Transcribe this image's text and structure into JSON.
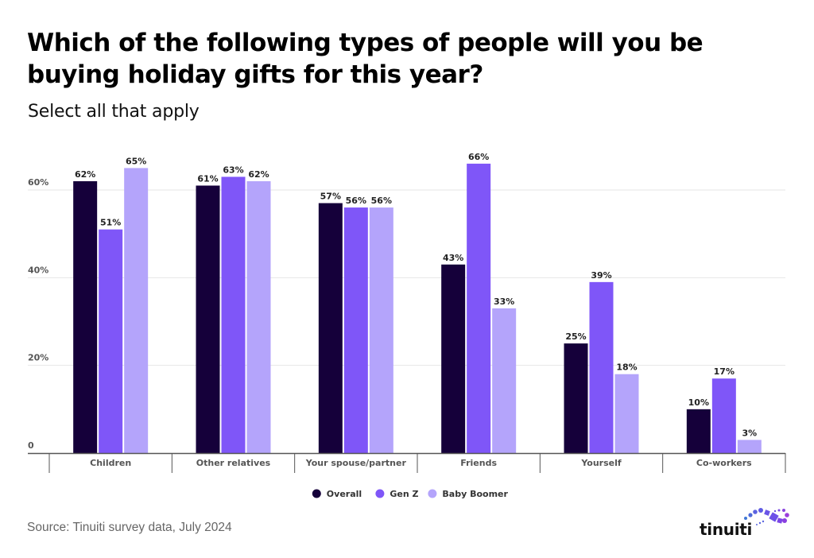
{
  "title": "Which of the following types of people will you be buying holiday gifts for this year?",
  "subtitle": "Select all that apply",
  "source": "Source: Tinuiti survey data, July 2024",
  "brand": {
    "name": "tinuiti",
    "logo_icon": "infinity-dots-icon"
  },
  "colors": {
    "Overall": "#15003a",
    "Gen Z": "#7f56f8",
    "Baby Boomer": "#b4a4fb",
    "gridline": "#e6e6e6",
    "axis": "#555555",
    "tick_text": "#555555",
    "label_text": "#222222"
  },
  "chart_data": {
    "type": "bar",
    "title": "Which of the following types of people will you be buying holiday gifts for this year?",
    "subtitle": "Select all that apply",
    "xlabel": "",
    "ylabel": "",
    "categories": [
      "Children",
      "Other relatives",
      "Your spouse/partner",
      "Friends",
      "Yourself",
      "Co-workers"
    ],
    "series": [
      {
        "name": "Overall",
        "values": [
          62,
          61,
          57,
          43,
          25,
          10
        ]
      },
      {
        "name": "Gen Z",
        "values": [
          51,
          63,
          56,
          66,
          39,
          17
        ]
      },
      {
        "name": "Baby Boomer",
        "values": [
          65,
          62,
          56,
          33,
          18,
          3
        ]
      }
    ],
    "value_suffix": "%",
    "ylim": [
      0,
      70
    ],
    "yticks": [
      0,
      20,
      40,
      60
    ],
    "ytick_labels": [
      "0",
      "20%",
      "40%",
      "60%"
    ],
    "grid": true,
    "legend": {
      "position": "bottom-center",
      "entries": [
        "Overall",
        "Gen Z",
        "Baby Boomer"
      ]
    },
    "data_labels": true
  }
}
